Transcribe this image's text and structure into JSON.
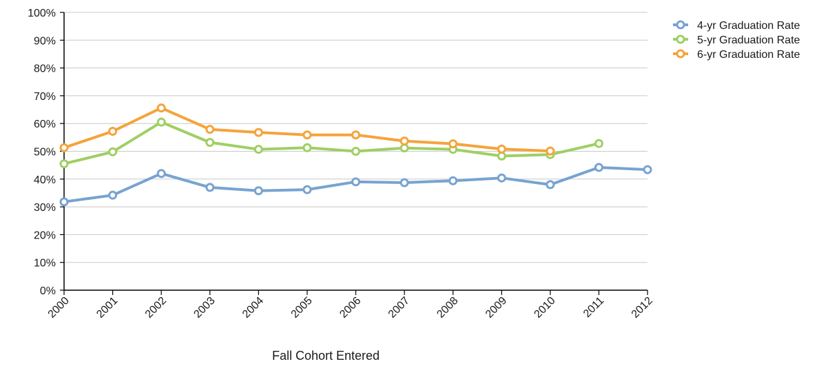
{
  "chart_data": {
    "type": "line",
    "title": "",
    "xlabel": "Fall Cohort Entered",
    "ylabel": "",
    "ylim": [
      0,
      100
    ],
    "y_ticks": [
      "0%",
      "10%",
      "20%",
      "30%",
      "40%",
      "50%",
      "60%",
      "70%",
      "80%",
      "90%",
      "100%"
    ],
    "categories": [
      "2000",
      "2001",
      "2002",
      "2003",
      "2004",
      "2005",
      "2006",
      "2007",
      "2008",
      "2009",
      "2010",
      "2011",
      "2012"
    ],
    "grid": true,
    "legend_position": "top-right",
    "series": [
      {
        "name": "4-yr Graduation Rate",
        "color": "#77a3d1",
        "values": [
          31.8,
          34.2,
          42.0,
          37.0,
          35.8,
          36.2,
          39.0,
          38.7,
          39.4,
          40.4,
          38.0,
          44.2,
          43.4
        ]
      },
      {
        "name": "5-yr Graduation Rate",
        "color": "#9fcf64",
        "values": [
          45.5,
          49.8,
          60.5,
          53.2,
          50.7,
          51.3,
          50.0,
          51.2,
          50.7,
          48.3,
          48.8,
          52.8,
          null
        ]
      },
      {
        "name": "6-yr Graduation Rate",
        "color": "#f5a33c",
        "values": [
          51.3,
          57.2,
          65.6,
          57.9,
          56.8,
          55.9,
          55.9,
          53.7,
          52.7,
          50.8,
          50.1,
          null,
          null
        ]
      }
    ]
  }
}
